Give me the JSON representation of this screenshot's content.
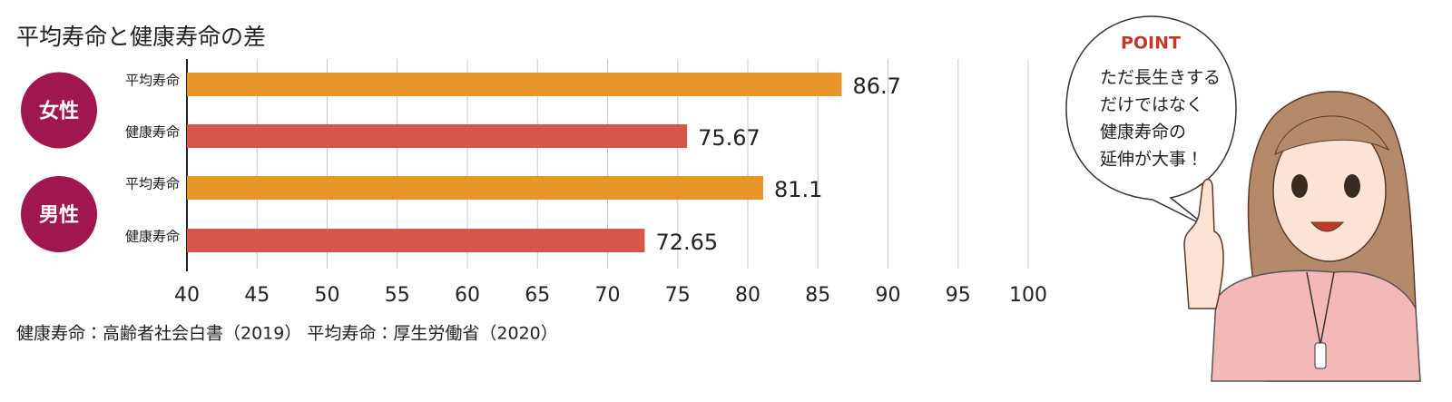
{
  "chart_data": {
    "type": "bar",
    "orientation": "horizontal",
    "title": "平均寿命と健康寿命の差",
    "groups": [
      {
        "label": "女性",
        "categories": [
          "平均寿命",
          "健康寿命"
        ],
        "values": [
          86.7,
          75.67
        ]
      },
      {
        "label": "男性",
        "categories": [
          "平均寿命",
          "健康寿命"
        ],
        "values": [
          81.1,
          72.65
        ]
      }
    ],
    "colors": [
      "#e8962a",
      "#d6564e"
    ],
    "group_color": "#a0174f",
    "xlim": [
      40,
      100
    ],
    "xticks": [
      40,
      45,
      50,
      55,
      60,
      65,
      70,
      75,
      80,
      85,
      90,
      95,
      100
    ],
    "grid": true,
    "note": "健康寿命：高齢者社会白書（2019） 平均寿命：厚生労働省（2020）"
  },
  "point": {
    "title": "POINT",
    "lines": [
      "ただ長生きする",
      "だけではなく",
      "健康寿命の",
      "延伸が大事！"
    ]
  }
}
